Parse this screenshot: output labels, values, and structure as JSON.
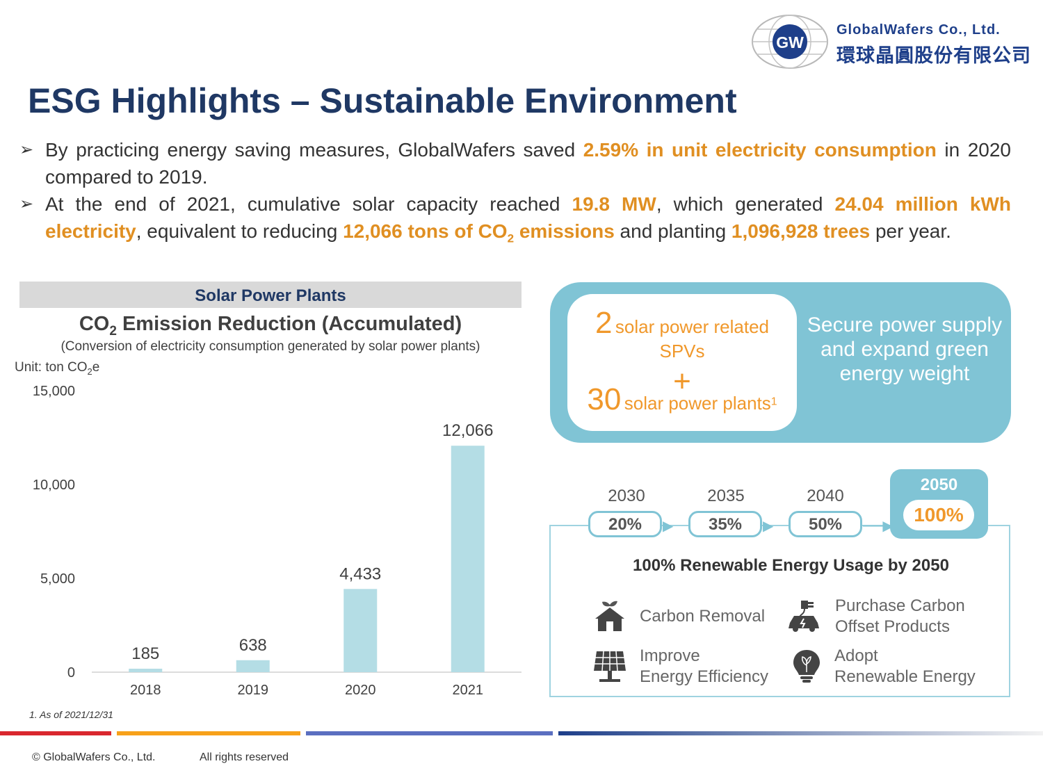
{
  "logo": {
    "monogram": "GW",
    "company_en": "GlobalWafers Co., Ltd.",
    "company_zh": "環球晶圓股份有限公司"
  },
  "title": "ESG Highlights – Sustainable Environment",
  "bullets": {
    "b1": {
      "t1": "By practicing energy saving measures, GlobalWafers saved ",
      "h1": "2.59% in unit electricity consumption",
      "t2": " in 2020 compared to 2019."
    },
    "b2": {
      "t1": "At the end of 2021, cumulative solar capacity reached ",
      "h1": "19.8 MW",
      "t2": ", which generated ",
      "h2": "24.04 million kWh electricity",
      "t3": ", equivalent to reducing ",
      "h3a": "12,066 tons of CO",
      "h3sub": "2",
      "h3b": " emissions",
      "t4": " and planting ",
      "h4": "1,096,928 trees",
      "t5": " per year."
    }
  },
  "panel_header": "Solar Power Plants",
  "chart_data": {
    "type": "bar",
    "title_a": "CO",
    "title_sub": "2",
    "title_b": " Emission Reduction (Accumulated)",
    "subtitle": "(Conversion of electricity consumption generated by solar power plants)",
    "unit_a": "Unit: ton CO",
    "unit_sub": "2",
    "unit_b": "e",
    "categories": [
      "2018",
      "2019",
      "2020",
      "2021"
    ],
    "values": [
      185,
      638,
      4433,
      12066
    ],
    "value_labels": [
      "185",
      "638",
      "4,433",
      "12,066"
    ],
    "ylim": [
      0,
      15000
    ],
    "yticks": [
      0,
      5000,
      10000,
      15000
    ],
    "ytick_labels": [
      "0",
      "5,000",
      "10,000",
      "15,000"
    ],
    "bar_color": "#b4dde5",
    "grid": false
  },
  "footnote": "1. As of 2021/12/31",
  "solar": {
    "spv_count": "2",
    "spv_text": "solar power related",
    "spv_text2": "SPVs",
    "plus": "+",
    "plant_count": "30",
    "plant_text": "solar power plants",
    "plant_sup": "1",
    "goal": "Secure power supply and expand green energy weight"
  },
  "roadmap": {
    "steps": [
      {
        "year": "2030",
        "pct": "20%"
      },
      {
        "year": "2035",
        "pct": "35%"
      },
      {
        "year": "2040",
        "pct": "50%"
      }
    ],
    "final_year": "2050",
    "final_pct": "100%",
    "title": "100% Renewable Energy Usage by 2050",
    "actions": {
      "carbon_removal": "Carbon Removal",
      "purchase_l1": "Purchase Carbon",
      "purchase_l2": "Offset Products",
      "improve_l1": "Improve",
      "improve_l2": "Energy Efficiency",
      "adopt_l1": "Adopt",
      "adopt_l2": "Renewable Energy"
    }
  },
  "footer": {
    "copyright": "© GlobalWafers Co., Ltd.",
    "rights": "All rights reserved"
  },
  "colors": {
    "navy": "#1f3864",
    "orange": "#e08f22",
    "teal": "#80c4d5",
    "bar": "#b4dde5"
  }
}
